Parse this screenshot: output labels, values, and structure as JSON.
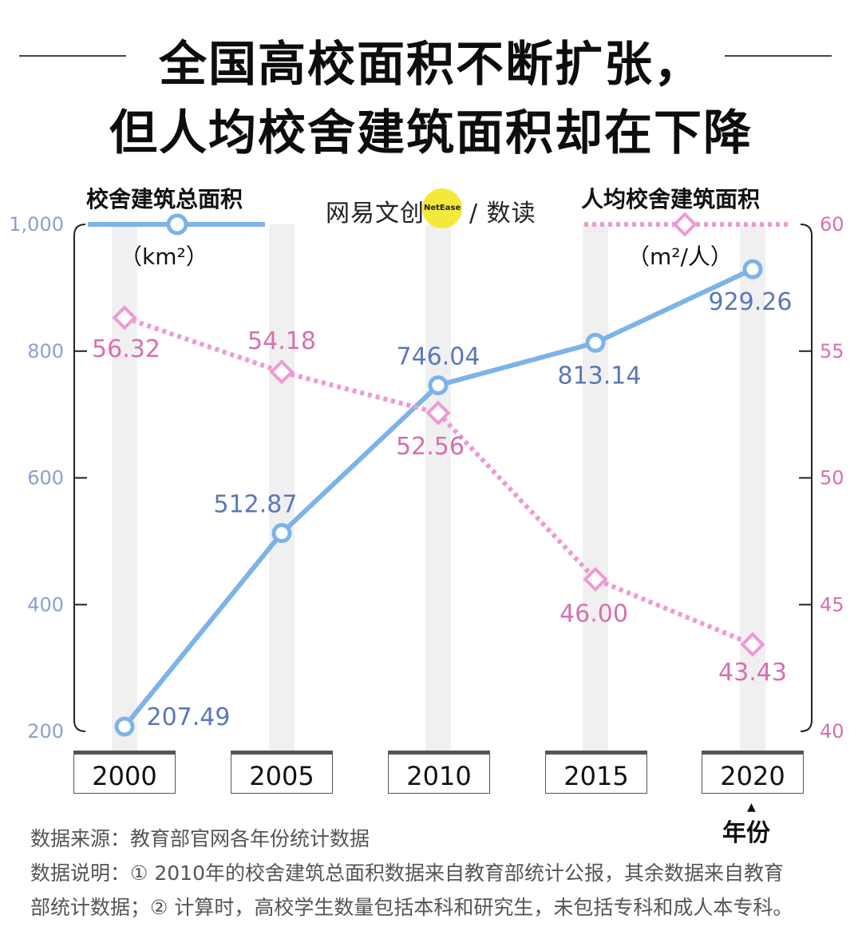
{
  "title": {
    "line1": "全国高校面积不断扩张，",
    "line2": "但人均校舍建筑面积却在下降"
  },
  "logo": {
    "text_left": "网易文创",
    "text_badge": "NetEase",
    "text_right": "/ 数读"
  },
  "colors": {
    "blue": "#7cb3e8",
    "blue_text": "#5a78b7",
    "pink": "#ee9ad3",
    "pink_text": "#d76fb0",
    "band": "#f0f0f0",
    "axis": "#222222"
  },
  "chart_data": {
    "type": "line",
    "categories": [
      "2000",
      "2005",
      "2010",
      "2015",
      "2020"
    ],
    "xlabel": "年份",
    "series": [
      {
        "name": "校舍建筑总面积",
        "unit": "（km²）",
        "axis": "left",
        "style": "solid",
        "values": [
          207.49,
          512.87,
          746.04,
          813.14,
          929.26
        ],
        "labels": [
          "207.49",
          "512.87",
          "746.04",
          "813.14",
          "929.26"
        ]
      },
      {
        "name": "人均校舍建筑面积",
        "unit": "（m²/人）",
        "axis": "right",
        "style": "dotted",
        "values": [
          56.32,
          54.18,
          52.56,
          46.0,
          43.43
        ],
        "labels": [
          "56.32",
          "54.18",
          "52.56",
          "46.00",
          "43.43"
        ]
      }
    ],
    "y_left": {
      "min": 200,
      "max": 1000,
      "ticks": [
        200,
        400,
        600,
        800,
        1000
      ],
      "tick_labels": [
        "200",
        "400",
        "600",
        "800",
        "1,000"
      ]
    },
    "y_right": {
      "min": 40,
      "max": 60,
      "ticks": [
        40,
        45,
        50,
        55,
        60
      ],
      "tick_labels": [
        "40",
        "45",
        "50",
        "55",
        "60"
      ]
    }
  },
  "notes": {
    "source": "数据来源：教育部官网各年份统计数据",
    "desc_line1": "数据说明：① 2010年的校舍建筑总面积数据来自教育部统计公报，其余数据来自教育",
    "desc_line2": "部统计数据；② 计算时，高校学生数量包括本科和研究生，未包括专科和成人本专科。"
  }
}
